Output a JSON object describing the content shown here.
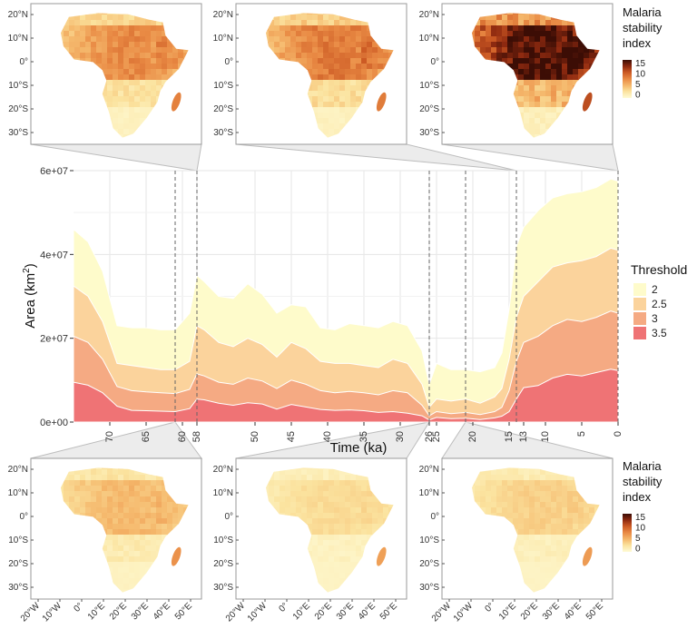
{
  "chart_data": {
    "type": "area",
    "xlabel": "Time (ka)",
    "ylabel_main": "Area (km",
    "ylabel_sup": "2",
    "ylabel_close": ")",
    "x_reversed": true,
    "xlim": [
      0,
      75
    ],
    "ylim": [
      0,
      60000000
    ],
    "x_ticks": [
      70,
      65,
      60,
      58,
      50,
      45,
      40,
      35,
      30,
      26,
      25,
      20,
      15,
      13,
      10,
      5,
      0
    ],
    "y_ticks": [
      0,
      20000000,
      40000000,
      60000000
    ],
    "y_tick_labels": [
      "0e+00",
      "2e+07",
      "4e+07",
      "6e+07"
    ],
    "grid": true,
    "legend_title": "Threshold",
    "legend_position": "right",
    "x": [
      75,
      73,
      71,
      69,
      67,
      65,
      63,
      61,
      59,
      58,
      57,
      55,
      53,
      51,
      49,
      47,
      45,
      43,
      41,
      39,
      37,
      35,
      33,
      31,
      29,
      27,
      26,
      25,
      23,
      21,
      19,
      17,
      16,
      15,
      14,
      13,
      11,
      9,
      7,
      5,
      3,
      1,
      0
    ],
    "series": [
      {
        "name": "3.5",
        "color": "#ef7375",
        "values": [
          9500000,
          8800000,
          7000000,
          3800000,
          2800000,
          2700000,
          2600000,
          2500000,
          3200000,
          5500000,
          5300000,
          4500000,
          4000000,
          4600000,
          4300000,
          3100000,
          4200000,
          3600000,
          3000000,
          2800000,
          2900000,
          2700000,
          2300000,
          2500000,
          2100000,
          1500000,
          500000,
          1100000,
          800000,
          900000,
          600000,
          1000000,
          1400000,
          2500000,
          5500000,
          8200000,
          8700000,
          10500000,
          11400000,
          11000000,
          11800000,
          12600000,
          12300000
        ]
      },
      {
        "name": "3",
        "color": "#f5aa83",
        "values": [
          20500000,
          19000000,
          15000000,
          8500000,
          7500000,
          7200000,
          7000000,
          6800000,
          7800000,
          11500000,
          11000000,
          9500000,
          9000000,
          10500000,
          9800000,
          8000000,
          10000000,
          9000000,
          7500000,
          7000000,
          7300000,
          7000000,
          6500000,
          7500000,
          7000000,
          4000000,
          1500000,
          2500000,
          2000000,
          2300000,
          1800000,
          2500000,
          3500000,
          7500000,
          14500000,
          19000000,
          20500000,
          23000000,
          24500000,
          24000000,
          25000000,
          26500000,
          26000000
        ]
      },
      {
        "name": "2.5",
        "color": "#fbd39c",
        "values": [
          32500000,
          30000000,
          24000000,
          14000000,
          13500000,
          13000000,
          12500000,
          12500000,
          14500000,
          23000000,
          22000000,
          19000000,
          18000000,
          20000000,
          18500000,
          15500000,
          19000000,
          17500000,
          14500000,
          14000000,
          14000000,
          13500000,
          13000000,
          15000000,
          14000000,
          9000000,
          3500000,
          5500000,
          5000000,
          5500000,
          4500000,
          6000000,
          8000000,
          15000000,
          25000000,
          30000000,
          33500000,
          37000000,
          38000000,
          38500000,
          39500000,
          41500000,
          41000000
        ]
      },
      {
        "name": "2",
        "color": "#fefbcb",
        "values": [
          46000000,
          43000000,
          36000000,
          23000000,
          22500000,
          22500000,
          22000000,
          22000000,
          26000000,
          35000000,
          33500000,
          30000000,
          29500000,
          33000000,
          30500000,
          26000000,
          28000000,
          27500000,
          22500000,
          22000000,
          23500000,
          23000000,
          22500000,
          24000000,
          23000000,
          17000000,
          9000000,
          14000000,
          12500000,
          12500000,
          12000000,
          13000000,
          16500000,
          27000000,
          42000000,
          46500000,
          50500000,
          53500000,
          54500000,
          55000000,
          56000000,
          58000000,
          57500000
        ]
      }
    ],
    "highlight_times": [
      61,
      58,
      26,
      21,
      14,
      0
    ]
  },
  "colorbar": {
    "title_lines": [
      "Malaria",
      "stability",
      "index"
    ],
    "labels": [
      "15",
      "10",
      "5",
      "0"
    ],
    "stops": [
      "#fefbd6",
      "#fbe39f",
      "#f5b86c",
      "#e98a44",
      "#cc5a24",
      "#8f2a10",
      "#3b0d05"
    ]
  },
  "map_axes": {
    "lat_labels": [
      "20°N",
      "10°N",
      "0°",
      "10°S",
      "20°S",
      "30°S"
    ],
    "lon_labels": [
      "20°W",
      "10°W",
      "0°",
      "10°E",
      "20°E",
      "30°E",
      "40°E",
      "50°E"
    ]
  },
  "maps": [
    {
      "intensity": 0.45
    },
    {
      "intensity": 0.5
    },
    {
      "intensity": 0.9
    },
    {
      "intensity": 0.3
    },
    {
      "intensity": 0.18
    },
    {
      "intensity": 0.22
    }
  ]
}
